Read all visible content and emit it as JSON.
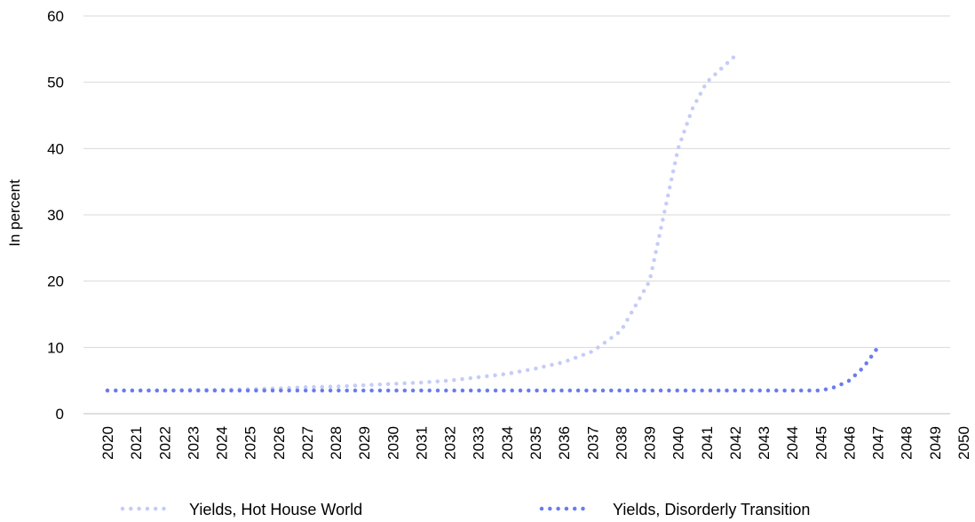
{
  "chart_data": {
    "type": "line",
    "title": "",
    "xlabel": "",
    "ylabel": "In percent",
    "ylim": [
      0,
      60
    ],
    "yticks": [
      0,
      10,
      20,
      30,
      40,
      50,
      60
    ],
    "xlim": [
      2020,
      2050
    ],
    "xticks": [
      "2020",
      "2021",
      "2022",
      "2023",
      "2024",
      "2025",
      "2026",
      "2027",
      "2028",
      "2029",
      "2030",
      "2031",
      "2032",
      "2033",
      "2034",
      "2035",
      "2036",
      "2037",
      "2038",
      "2039",
      "2040",
      "2041",
      "2042",
      "2043",
      "2044",
      "2045",
      "2046",
      "2047",
      "2048",
      "2049",
      "2050"
    ],
    "grid": true,
    "legend_position": "bottom",
    "series": [
      {
        "name": "Yields, Hot House World",
        "color": "#c5ccf7",
        "style": "dotted",
        "x": [
          2020,
          2021,
          2022,
          2023,
          2024,
          2025,
          2026,
          2027,
          2028,
          2029,
          2030,
          2031,
          2032,
          2033,
          2034,
          2035,
          2036,
          2037,
          2038,
          2039,
          2039.5,
          2040,
          2040.5,
          2041,
          2041.5,
          2042
        ],
        "y": [
          3.5,
          3.5,
          3.5,
          3.6,
          3.6,
          3.7,
          3.8,
          4.0,
          4.1,
          4.3,
          4.5,
          4.7,
          5.0,
          5.5,
          6.0,
          6.8,
          7.8,
          9.4,
          12.5,
          20,
          30,
          40,
          46,
          50,
          52,
          54
        ]
      },
      {
        "name": "Yields, Disorderly Transition",
        "color": "#6a7cec",
        "style": "dotted",
        "x": [
          2020,
          2021,
          2022,
          2023,
          2024,
          2025,
          2026,
          2027,
          2028,
          2029,
          2030,
          2031,
          2032,
          2033,
          2034,
          2035,
          2036,
          2037,
          2038,
          2039,
          2040,
          2041,
          2042,
          2043,
          2044,
          2045,
          2045.5,
          2046,
          2046.5,
          2047
        ],
        "y": [
          3.5,
          3.5,
          3.5,
          3.5,
          3.5,
          3.5,
          3.5,
          3.5,
          3.5,
          3.5,
          3.5,
          3.5,
          3.5,
          3.5,
          3.5,
          3.5,
          3.5,
          3.5,
          3.5,
          3.5,
          3.5,
          3.5,
          3.5,
          3.5,
          3.5,
          3.5,
          4.0,
          5.0,
          7.0,
          10.0
        ]
      }
    ]
  }
}
